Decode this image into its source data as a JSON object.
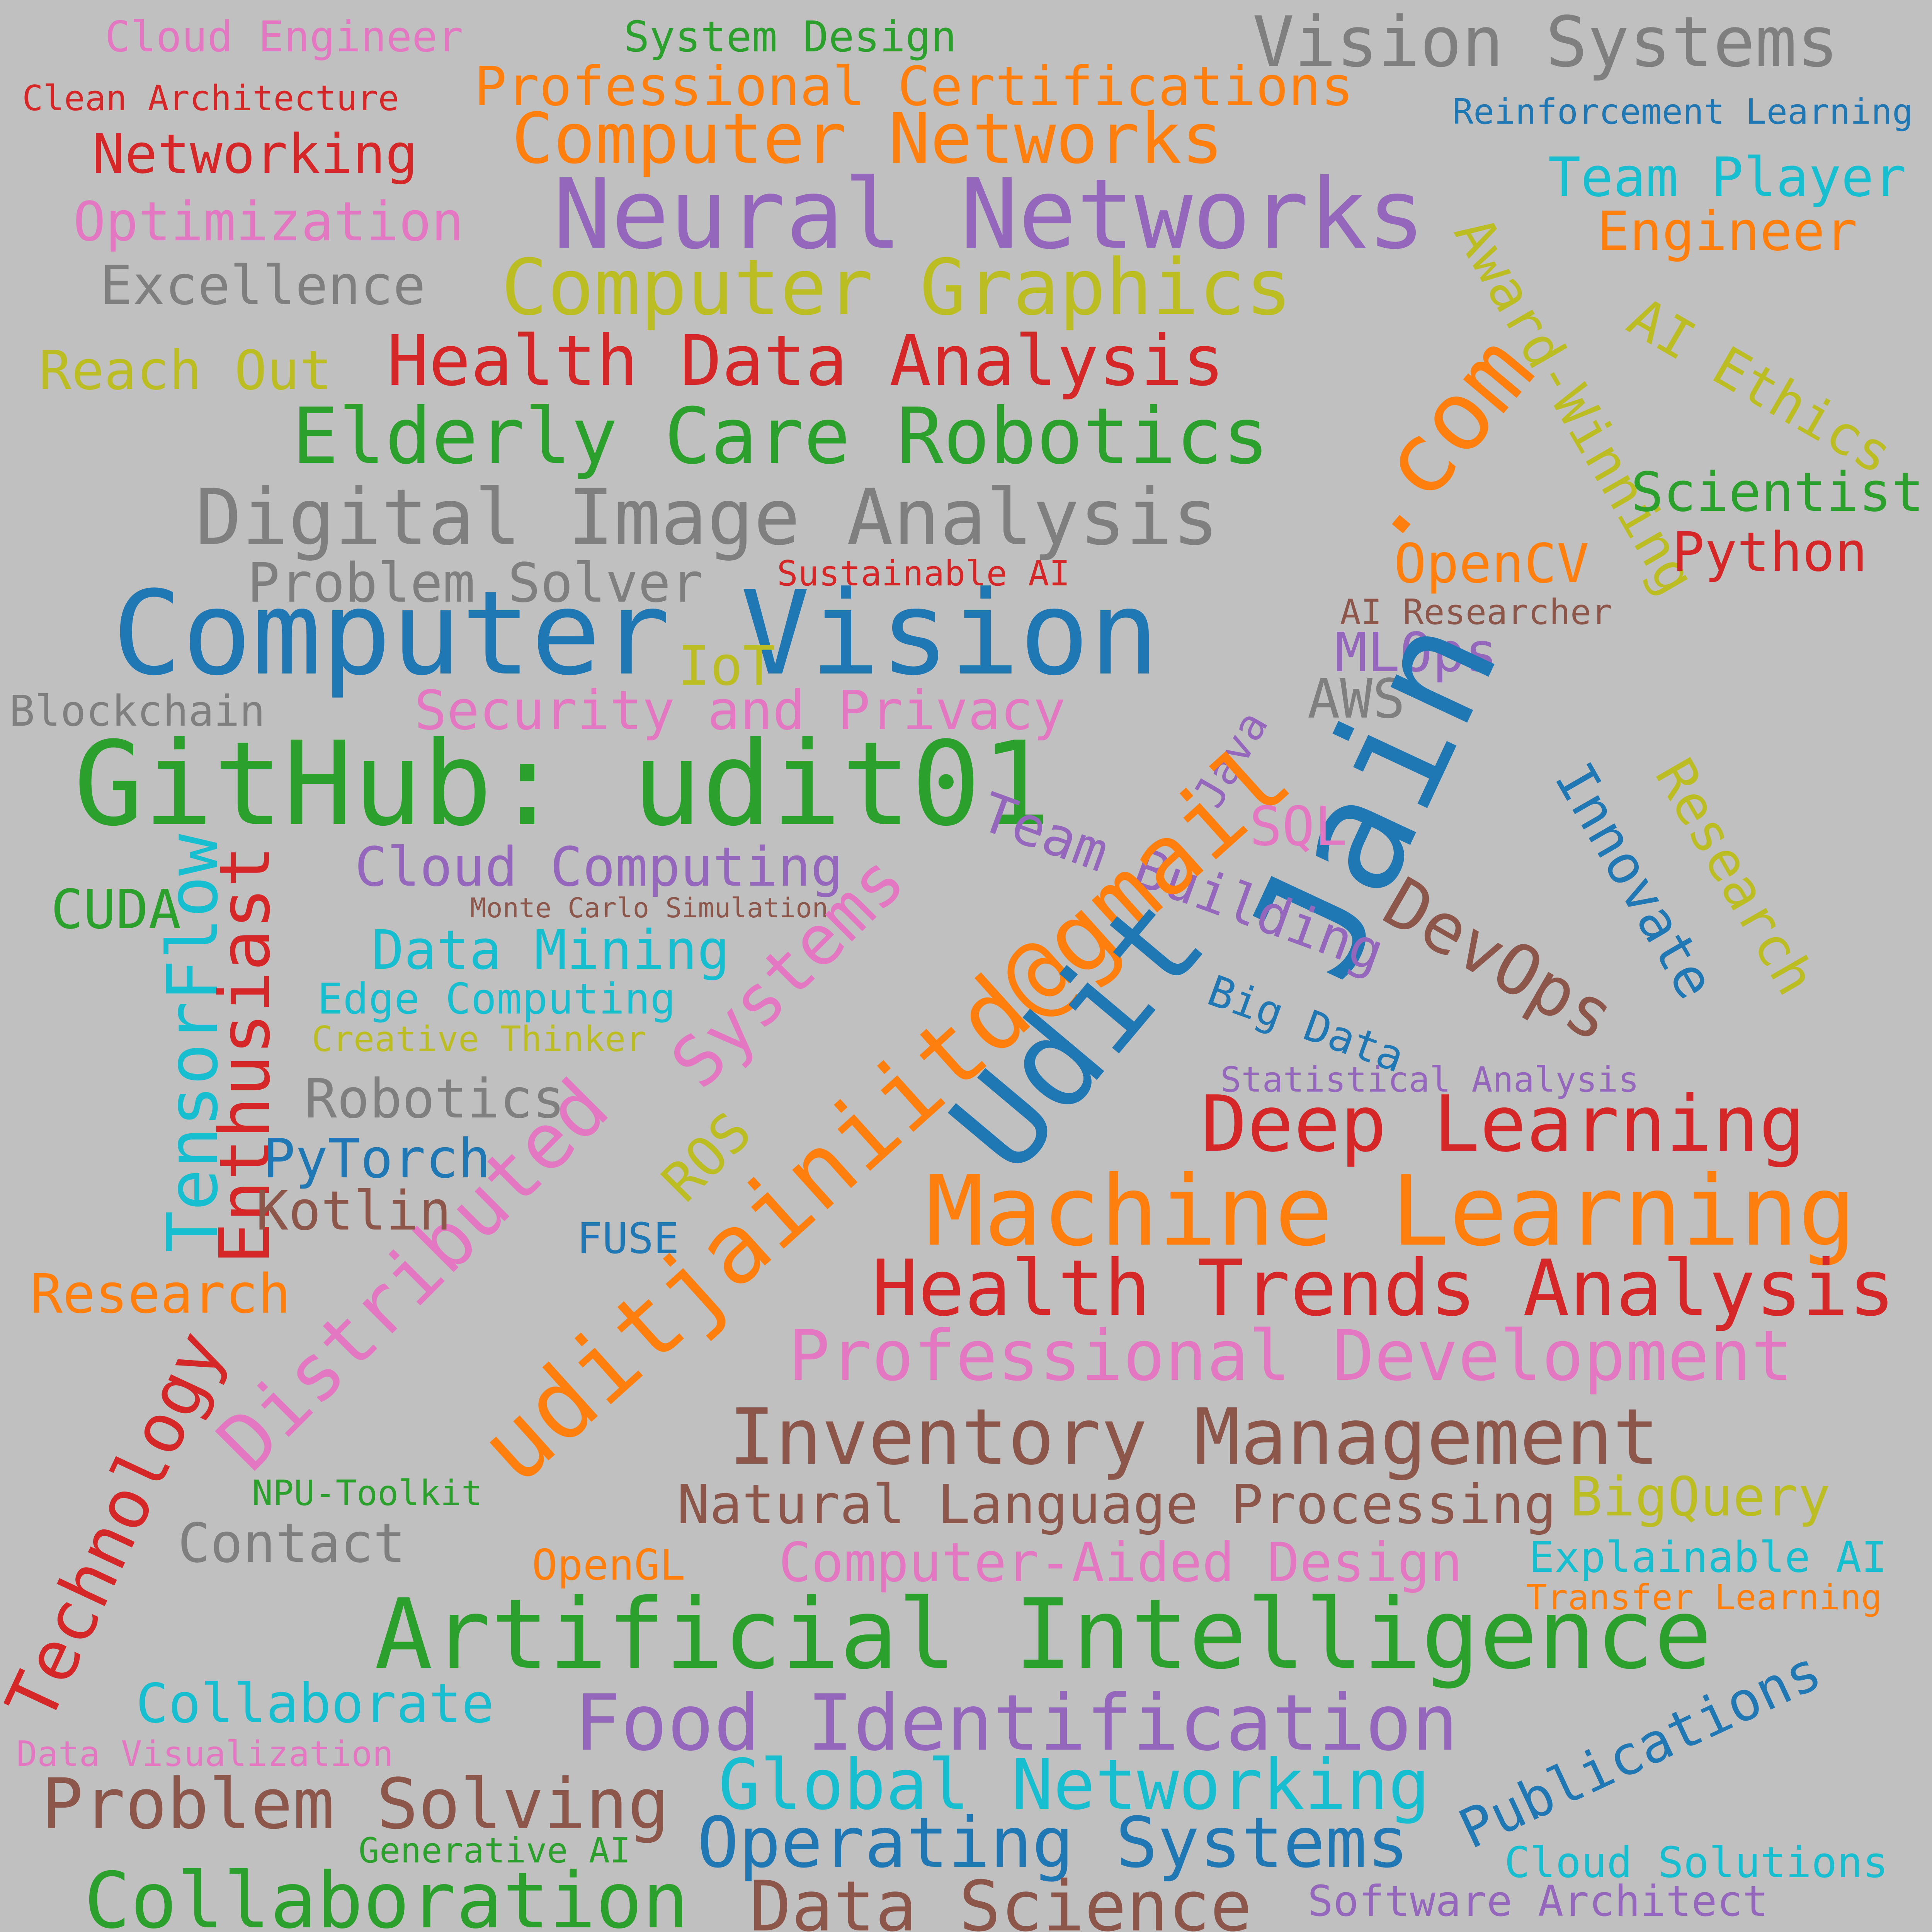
{
  "palette": {
    "background": "#c0c0c0",
    "red": "#d62728",
    "orange": "#ff7f0e",
    "green": "#2ca02c",
    "blue": "#1f77b4",
    "purple": "#9467bd",
    "brown": "#8c564b",
    "pink": "#e377c2",
    "gray": "#7f7f7f",
    "olive": "#bcbd22",
    "cyan": "#17becf"
  },
  "words": [
    {
      "text": "Cloud Engineer",
      "color": "pink"
    },
    {
      "text": "System Design",
      "color": "green"
    },
    {
      "text": "Vision Systems",
      "color": "gray"
    },
    {
      "text": "Clean Architecture",
      "color": "red"
    },
    {
      "text": "Professional Certifications",
      "color": "orange"
    },
    {
      "text": "Reinforcement Learning",
      "color": "blue"
    },
    {
      "text": "Networking",
      "color": "red"
    },
    {
      "text": "Computer Networks",
      "color": "orange"
    },
    {
      "text": "Team Player",
      "color": "cyan"
    },
    {
      "text": "Optimization",
      "color": "pink"
    },
    {
      "text": "Neural Networks",
      "color": "purple"
    },
    {
      "text": "Engineer",
      "color": "orange"
    },
    {
      "text": "Award-Winning",
      "color": "olive"
    },
    {
      "text": "Excellence",
      "color": "gray"
    },
    {
      "text": "Computer Graphics",
      "color": "olive"
    },
    {
      "text": "AI Ethics",
      "color": "olive"
    },
    {
      "text": "Reach Out",
      "color": "olive"
    },
    {
      "text": "Health Data Analysis",
      "color": "red"
    },
    {
      "text": "Elderly Care Robotics",
      "color": "green"
    },
    {
      "text": "Scientist",
      "color": "green"
    },
    {
      "text": ".com",
      "color": "orange"
    },
    {
      "text": "Digital Image Analysis",
      "color": "gray"
    },
    {
      "text": "Python",
      "color": "red"
    },
    {
      "text": "OpenCV",
      "color": "orange"
    },
    {
      "text": "Problem Solver",
      "color": "gray"
    },
    {
      "text": "Sustainable AI",
      "color": "red"
    },
    {
      "text": "AI Researcher",
      "color": "brown"
    },
    {
      "text": "Computer Vision",
      "color": "blue"
    },
    {
      "text": "IoT",
      "color": "olive"
    },
    {
      "text": "MLOps",
      "color": "purple"
    },
    {
      "text": "Blockchain",
      "color": "gray"
    },
    {
      "text": "Security and Privacy",
      "color": "pink"
    },
    {
      "text": "AWS",
      "color": "gray"
    },
    {
      "text": "GitHub: udit01",
      "color": "green"
    },
    {
      "text": "Java",
      "color": "purple"
    },
    {
      "text": "Jain",
      "color": "blue"
    },
    {
      "text": "Innovate",
      "color": "blue"
    },
    {
      "text": "Research",
      "color": "olive"
    },
    {
      "text": "SQL",
      "color": "pink"
    },
    {
      "text": "Team Building",
      "color": "purple"
    },
    {
      "text": "DevOps",
      "color": "brown"
    },
    {
      "text": "CUDA",
      "color": "green"
    },
    {
      "text": "TensorFlow",
      "color": "cyan"
    },
    {
      "text": "Enthusiast",
      "color": "red"
    },
    {
      "text": "Cloud Computing",
      "color": "purple"
    },
    {
      "text": "Monte Carlo Simulation",
      "color": "brown"
    },
    {
      "text": "Systems",
      "color": "pink"
    },
    {
      "text": "uditjainiitd@gmail",
      "color": "orange"
    },
    {
      "text": "Udit",
      "color": "blue"
    },
    {
      "text": "Data Mining",
      "color": "cyan"
    },
    {
      "text": "Edge Computing",
      "color": "cyan"
    },
    {
      "text": "Big Data",
      "color": "blue"
    },
    {
      "text": "Creative Thinker",
      "color": "olive"
    },
    {
      "text": "Statistical Analysis",
      "color": "purple"
    },
    {
      "text": "Robotics",
      "color": "gray"
    },
    {
      "text": "Distributed",
      "color": "pink"
    },
    {
      "text": "ROS",
      "color": "olive"
    },
    {
      "text": "Deep Learning",
      "color": "red"
    },
    {
      "text": "PyTorch",
      "color": "blue"
    },
    {
      "text": "Kotlin",
      "color": "brown"
    },
    {
      "text": "FUSE",
      "color": "blue"
    },
    {
      "text": "Machine Learning",
      "color": "orange"
    },
    {
      "text": "Research",
      "color": "orange"
    },
    {
      "text": "Health Trends Analysis",
      "color": "red"
    },
    {
      "text": "Technology",
      "color": "red"
    },
    {
      "text": "Professional Development",
      "color": "pink"
    },
    {
      "text": "Inventory Management",
      "color": "brown"
    },
    {
      "text": "NPU-Toolkit",
      "color": "green"
    },
    {
      "text": "Natural Language Processing",
      "color": "brown"
    },
    {
      "text": "BigQuery",
      "color": "olive"
    },
    {
      "text": "Contact",
      "color": "gray"
    },
    {
      "text": "OpenGL",
      "color": "orange"
    },
    {
      "text": "Computer-Aided Design",
      "color": "pink"
    },
    {
      "text": "Explainable AI",
      "color": "cyan"
    },
    {
      "text": "Transfer Learning",
      "color": "orange"
    },
    {
      "text": "Artificial Intelligence",
      "color": "green"
    },
    {
      "text": "Collaborate",
      "color": "cyan"
    },
    {
      "text": "Food Identification",
      "color": "purple"
    },
    {
      "text": "Publications",
      "color": "blue"
    },
    {
      "text": "Data Visualization",
      "color": "pink"
    },
    {
      "text": "Problem Solving",
      "color": "brown"
    },
    {
      "text": "Global Networking",
      "color": "cyan"
    },
    {
      "text": "Generative AI",
      "color": "green"
    },
    {
      "text": "Operating Systems",
      "color": "blue"
    },
    {
      "text": "Cloud Solutions",
      "color": "cyan"
    },
    {
      "text": "Collaboration",
      "color": "green"
    },
    {
      "text": "Data Science",
      "color": "brown"
    },
    {
      "text": "Software Architect",
      "color": "purple"
    }
  ]
}
